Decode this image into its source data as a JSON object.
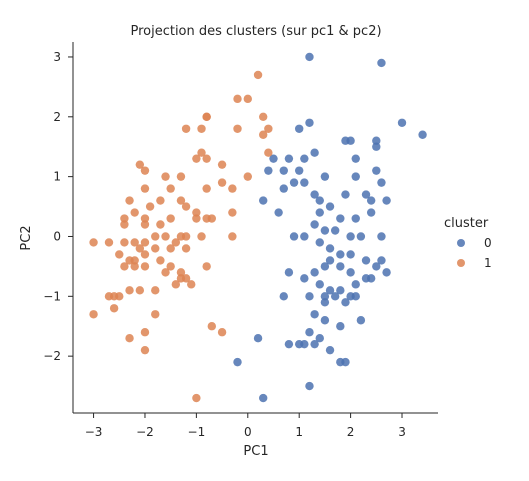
{
  "chart_data": {
    "type": "scatter",
    "title": "Projection des clusters (sur pc1 & pc2)",
    "xlabel": "PC1",
    "ylabel": "PC2",
    "xlim": [
      -3.4,
      3.7
    ],
    "ylim": [
      -2.95,
      3.25
    ],
    "xticks": [
      "−3",
      "−2",
      "−1",
      "0",
      "1",
      "2",
      "3"
    ],
    "xtick_values": [
      -3,
      -2,
      -1,
      0,
      1,
      2,
      3
    ],
    "yticks": [
      "−2",
      "−1",
      "0",
      "1",
      "2",
      "3"
    ],
    "ytick_values": [
      -2,
      -1,
      0,
      1,
      2,
      3
    ],
    "grid": false,
    "legend": {
      "title": "cluster",
      "placement": "right",
      "entries": [
        "0",
        "1"
      ]
    },
    "series": [
      {
        "name": "0",
        "color": "#4c72b0",
        "points": [
          [
            1.2,
            3.0
          ],
          [
            2.6,
            2.9
          ],
          [
            3.0,
            1.9
          ],
          [
            3.4,
            1.7
          ],
          [
            1.0,
            1.8
          ],
          [
            1.2,
            1.9
          ],
          [
            1.9,
            1.6
          ],
          [
            2.5,
            1.6
          ],
          [
            0.4,
            1.1
          ],
          [
            0.5,
            1.3
          ],
          [
            0.7,
            1.1
          ],
          [
            0.8,
            1.3
          ],
          [
            1.0,
            1.1
          ],
          [
            1.1,
            1.3
          ],
          [
            1.3,
            1.4
          ],
          [
            2.0,
            1.6
          ],
          [
            1.5,
            1.0
          ],
          [
            2.1,
            1.3
          ],
          [
            2.5,
            1.1
          ],
          [
            2.5,
            1.5
          ],
          [
            2.1,
            1.0
          ],
          [
            0.3,
            0.6
          ],
          [
            0.7,
            0.8
          ],
          [
            0.9,
            0.9
          ],
          [
            1.1,
            0.9
          ],
          [
            1.3,
            0.7
          ],
          [
            1.4,
            0.6
          ],
          [
            1.9,
            0.7
          ],
          [
            2.3,
            0.7
          ],
          [
            2.4,
            0.6
          ],
          [
            2.6,
            0.9
          ],
          [
            2.7,
            0.6
          ],
          [
            0.6,
            0.4
          ],
          [
            1.4,
            0.4
          ],
          [
            1.6,
            0.5
          ],
          [
            1.8,
            0.3
          ],
          [
            2.1,
            0.3
          ],
          [
            2.4,
            0.4
          ],
          [
            1.3,
            0.2
          ],
          [
            1.5,
            0.1
          ],
          [
            1.7,
            0.1
          ],
          [
            2.0,
            0.0
          ],
          [
            2.2,
            0.0
          ],
          [
            2.6,
            0.0
          ],
          [
            0.9,
            0.0
          ],
          [
            1.1,
            0.0
          ],
          [
            1.4,
            -0.1
          ],
          [
            1.6,
            -0.2
          ],
          [
            1.8,
            -0.3
          ],
          [
            2.0,
            -0.3
          ],
          [
            2.3,
            -0.4
          ],
          [
            2.6,
            -0.4
          ],
          [
            2.4,
            -0.7
          ],
          [
            1.3,
            -0.6
          ],
          [
            1.5,
            -0.5
          ],
          [
            1.6,
            -0.4
          ],
          [
            1.8,
            -0.5
          ],
          [
            2.0,
            -0.6
          ],
          [
            2.1,
            -0.8
          ],
          [
            2.3,
            -0.7
          ],
          [
            2.5,
            -0.5
          ],
          [
            2.7,
            -0.6
          ],
          [
            0.8,
            -0.6
          ],
          [
            1.1,
            -0.7
          ],
          [
            1.4,
            -0.8
          ],
          [
            1.6,
            -0.9
          ],
          [
            1.8,
            -0.9
          ],
          [
            2.0,
            -1.0
          ],
          [
            1.2,
            -1.0
          ],
          [
            1.5,
            -1.0
          ],
          [
            1.7,
            -1.0
          ],
          [
            1.9,
            -1.1
          ],
          [
            2.1,
            -1.0
          ],
          [
            0.7,
            -1.0
          ],
          [
            1.5,
            -1.1
          ],
          [
            1.3,
            -1.3
          ],
          [
            1.5,
            -1.4
          ],
          [
            1.8,
            -1.5
          ],
          [
            2.2,
            -1.4
          ],
          [
            1.2,
            -1.6
          ],
          [
            1.4,
            -1.7
          ],
          [
            1.1,
            -1.8
          ],
          [
            1.3,
            -1.8
          ],
          [
            1.6,
            -1.9
          ],
          [
            0.8,
            -1.8
          ],
          [
            1.0,
            -1.8
          ],
          [
            1.8,
            -2.1
          ],
          [
            1.9,
            -2.1
          ],
          [
            0.2,
            -1.7
          ],
          [
            -0.2,
            -2.1
          ],
          [
            1.2,
            -2.5
          ],
          [
            0.3,
            -2.7
          ]
        ]
      },
      {
        "name": "1",
        "color": "#dd8452",
        "points": [
          [
            0.2,
            2.7
          ],
          [
            -0.2,
            2.3
          ],
          [
            0.0,
            2.3
          ],
          [
            -0.8,
            2.0
          ],
          [
            -0.8,
            2.0
          ],
          [
            0.3,
            2.0
          ],
          [
            0.4,
            1.8
          ],
          [
            -0.2,
            1.8
          ],
          [
            -1.2,
            1.8
          ],
          [
            -0.9,
            1.8
          ],
          [
            0.3,
            1.7
          ],
          [
            0.4,
            1.4
          ],
          [
            -0.9,
            1.4
          ],
          [
            -1.0,
            1.3
          ],
          [
            -0.8,
            1.3
          ],
          [
            -0.5,
            1.2
          ],
          [
            -2.1,
            1.2
          ],
          [
            -2.0,
            1.1
          ],
          [
            0.0,
            1.0
          ],
          [
            -0.5,
            0.9
          ],
          [
            -1.6,
            1.0
          ],
          [
            -1.3,
            1.0
          ],
          [
            -1.5,
            0.8
          ],
          [
            -2.0,
            0.8
          ],
          [
            -0.8,
            0.8
          ],
          [
            -0.3,
            0.8
          ],
          [
            -1.3,
            0.6
          ],
          [
            -1.7,
            0.6
          ],
          [
            -2.3,
            0.6
          ],
          [
            -1.9,
            0.5
          ],
          [
            -1.2,
            0.5
          ],
          [
            -1.0,
            0.4
          ],
          [
            -2.2,
            0.4
          ],
          [
            -2.4,
            0.3
          ],
          [
            -2.0,
            0.3
          ],
          [
            -1.5,
            0.3
          ],
          [
            -1.0,
            0.3
          ],
          [
            -0.8,
            0.3
          ],
          [
            -0.7,
            0.3
          ],
          [
            -2.4,
            0.2
          ],
          [
            -2.0,
            0.2
          ],
          [
            -1.7,
            0.2
          ],
          [
            -0.3,
            0.4
          ],
          [
            -1.8,
            0.0
          ],
          [
            -1.6,
            0.0
          ],
          [
            -1.3,
            0.0
          ],
          [
            -1.2,
            0.0
          ],
          [
            -0.9,
            0.0
          ],
          [
            -0.3,
            0.0
          ],
          [
            -2.0,
            -0.1
          ],
          [
            -2.2,
            -0.1
          ],
          [
            -2.4,
            -0.1
          ],
          [
            -2.7,
            -0.1
          ],
          [
            -1.4,
            -0.1
          ],
          [
            -1.8,
            -0.2
          ],
          [
            -2.1,
            -0.2
          ],
          [
            -1.5,
            -0.2
          ],
          [
            -1.2,
            -0.2
          ],
          [
            -2.5,
            -0.3
          ],
          [
            -2.3,
            -0.4
          ],
          [
            -2.2,
            -0.4
          ],
          [
            -2.0,
            -0.3
          ],
          [
            -1.7,
            -0.4
          ],
          [
            -2.4,
            -0.5
          ],
          [
            -1.5,
            -0.5
          ],
          [
            -1.3,
            -0.6
          ],
          [
            -2.2,
            -0.5
          ],
          [
            -2.0,
            -0.5
          ],
          [
            -1.6,
            -0.6
          ],
          [
            -1.3,
            -0.7
          ],
          [
            -1.2,
            -0.7
          ],
          [
            -0.8,
            -0.5
          ],
          [
            -2.3,
            -0.9
          ],
          [
            -2.1,
            -0.9
          ],
          [
            -1.8,
            -0.9
          ],
          [
            -1.4,
            -0.8
          ],
          [
            -1.1,
            -0.8
          ],
          [
            -2.5,
            -1.0
          ],
          [
            -2.6,
            -1.0
          ],
          [
            -2.7,
            -1.0
          ],
          [
            -2.6,
            -1.2
          ],
          [
            -1.8,
            -1.3
          ],
          [
            -3.0,
            -0.1
          ],
          [
            -3.0,
            -1.3
          ],
          [
            -2.3,
            -1.7
          ],
          [
            -2.0,
            -1.6
          ],
          [
            -2.0,
            -1.9
          ],
          [
            -0.7,
            -1.5
          ],
          [
            -0.5,
            -1.6
          ],
          [
            -1.0,
            -2.7
          ]
        ]
      }
    ]
  }
}
